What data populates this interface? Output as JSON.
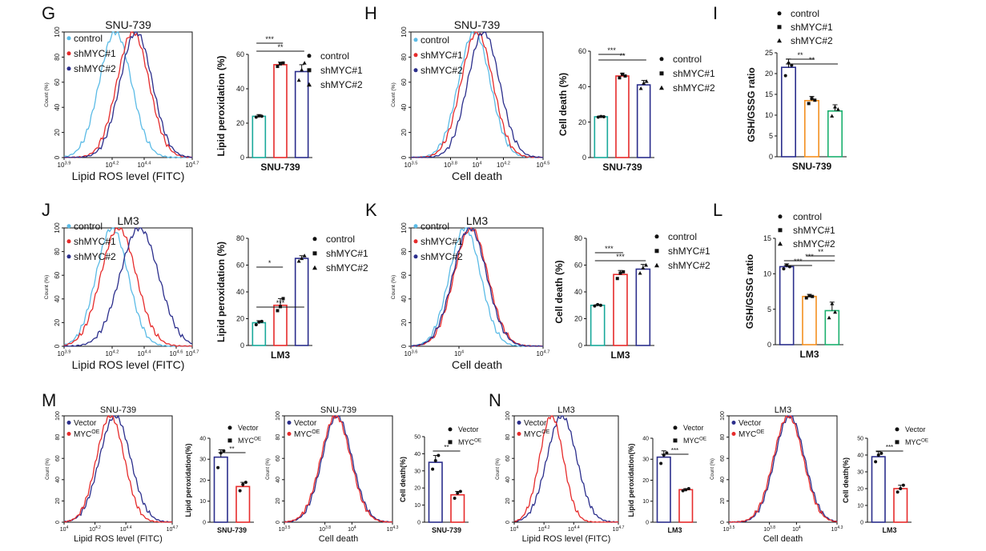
{
  "colors": {
    "control": "#5bbbe6",
    "shMYC1": "#e62b2b",
    "shMYC2": "#2b2e8c",
    "bar_control": "#19a99a",
    "bar_orange": "#f39020",
    "bar_green": "#1bb06e",
    "vector": "#2b2e8c",
    "mycoe": "#e62b2b",
    "axis": "#111111"
  },
  "panels": {
    "G": {
      "letter": "G",
      "title": "SNU-739",
      "xlabel": "Lipid ROS level (FITC)",
      "ylabel": "Count (%)"
    },
    "G2": {
      "ylabel": "Lipid peroxidation (%)",
      "xlabel": "SNU-739"
    },
    "H": {
      "letter": "H",
      "title": "SNU-739",
      "xlabel": "Cell death",
      "ylabel": "Count (%)"
    },
    "H2": {
      "ylabel": "Cell death (%)",
      "xlabel": "SNU-739"
    },
    "I": {
      "letter": "I",
      "ylabel": "GSH/GSSG ratio",
      "xlabel": "SNU-739"
    },
    "J": {
      "letter": "J",
      "title": "LM3",
      "xlabel": "Lipid ROS level (FITC)",
      "ylabel": "Count (%)"
    },
    "J2": {
      "ylabel": "Lipid peroxidation (%)",
      "xlabel": "LM3"
    },
    "K": {
      "letter": "K",
      "title": "LM3",
      "xlabel": "Cell death",
      "ylabel": "Count (%)"
    },
    "K2": {
      "ylabel": "Cell death (%)",
      "xlabel": "LM3"
    },
    "L": {
      "letter": "L",
      "ylabel": "GSH/GSSG ratio",
      "xlabel": "LM3"
    },
    "M": {
      "letter": "M",
      "title": "SNU-739",
      "xlabel": "Lipid ROS level (FITC)",
      "ylabel": "Count (%)"
    },
    "M2": {
      "ylabel": "Lipid peroxidation(%)",
      "xlabel": "SNU-739"
    },
    "M3": {
      "title": "SNU-739",
      "xlabel": "Cell death",
      "ylabel": "Count (%)"
    },
    "M4": {
      "ylabel": "Cell death(%)",
      "xlabel": "SNU-739"
    },
    "N": {
      "letter": "N",
      "title": "LM3",
      "xlabel": "Lipid ROS level (FITC)",
      "ylabel": "Count (%)"
    },
    "N2": {
      "ylabel": "Lipid peroxidation(%)",
      "xlabel": "LM3"
    },
    "N3": {
      "title": "LM3",
      "xlabel": "Cell death",
      "ylabel": "Count (%)"
    },
    "N4": {
      "ylabel": "Cell death(%)",
      "xlabel": "LM3"
    }
  },
  "legends": {
    "hist3": [
      "control",
      "shMYC#1",
      "shMYC#2"
    ],
    "bar3": [
      "control",
      "shMYC#1",
      "shMYC#2"
    ],
    "vec": [
      "Vector",
      "MYC",
      "OE"
    ]
  },
  "chart_data": [
    {
      "id": "G-hist",
      "type": "line",
      "title": "SNU-739",
      "xlabel": "Lipid ROS level (FITC)",
      "ylabel": "Count (%)",
      "xscale": "log",
      "x_ticks": [
        "10^3.9",
        "10^4.2",
        "10^4.4",
        "10^4.7"
      ],
      "y_ticks": [
        "0",
        "20",
        "40",
        "60",
        "80",
        "100"
      ],
      "ylim": [
        0,
        100
      ],
      "series": [
        {
          "name": "control",
          "peak_log10": 4.22,
          "sd_log10": 0.1
        },
        {
          "name": "shMYC#1",
          "peak_log10": 4.33,
          "sd_log10": 0.1
        },
        {
          "name": "shMYC#2",
          "peak_log10": 4.35,
          "sd_log10": 0.1
        }
      ]
    },
    {
      "id": "G-bar",
      "type": "bar",
      "xlabel": "SNU-739",
      "ylabel": "Lipid peroxidation (%)",
      "ylim": [
        0,
        60
      ],
      "y_ticks": [
        "0",
        "20",
        "40",
        "60"
      ],
      "categories": [
        "control",
        "shMYC#1",
        "shMYC#2"
      ],
      "values": [
        24,
        54,
        50
      ],
      "errors": [
        1,
        1.5,
        4
      ],
      "points": [
        [
          23.5,
          24.2,
          24.0
        ],
        [
          53,
          54.5,
          55
        ],
        [
          45,
          51,
          55
        ]
      ],
      "significance": [
        {
          "from": 0,
          "to": 1,
          "label": "***"
        },
        {
          "from": 0,
          "to": 2,
          "label": "**"
        }
      ]
    },
    {
      "id": "H-hist",
      "type": "line",
      "title": "SNU-739",
      "xlabel": "Cell death",
      "ylabel": "Count (%)",
      "xscale": "log",
      "x_ticks": [
        "10^3.5",
        "10^3.8",
        "10^4",
        "10^4.2",
        "10^4.5"
      ],
      "y_ticks": [
        "0",
        "20",
        "40",
        "60",
        "80",
        "100"
      ],
      "ylim": [
        0,
        100
      ],
      "series": [
        {
          "name": "control",
          "peak_log10": 3.98,
          "sd_log10": 0.12
        },
        {
          "name": "shMYC#1",
          "peak_log10": 4.0,
          "sd_log10": 0.12
        },
        {
          "name": "shMYC#2",
          "peak_log10": 4.05,
          "sd_log10": 0.12
        }
      ]
    },
    {
      "id": "H-bar",
      "type": "bar",
      "xlabel": "SNU-739",
      "ylabel": "Cell death (%)",
      "ylim": [
        0,
        60
      ],
      "y_ticks": [
        "0",
        "20",
        "40",
        "60"
      ],
      "categories": [
        "control",
        "shMYC#1",
        "shMYC#2"
      ],
      "values": [
        23,
        46,
        41
      ],
      "errors": [
        0.5,
        1.5,
        2.5
      ],
      "points": [
        [
          22.8,
          23.2,
          23.0
        ],
        [
          45,
          47,
          46
        ],
        [
          39,
          42,
          43
        ]
      ],
      "significance": [
        {
          "from": 0,
          "to": 1,
          "label": "***"
        },
        {
          "from": 0,
          "to": 2,
          "label": "**"
        }
      ]
    },
    {
      "id": "I-bar",
      "type": "bar",
      "xlabel": "SNU-739",
      "ylabel": "GSH/GSSG ratio",
      "ylim": [
        0,
        25
      ],
      "y_ticks": [
        "0",
        "5",
        "10",
        "15",
        "20",
        "25"
      ],
      "categories": [
        "control",
        "shMYC#1",
        "shMYC#2"
      ],
      "values": [
        21.5,
        13.5,
        11
      ],
      "errors": [
        2,
        1,
        1.5
      ],
      "points": [
        [
          19.5,
          22.5,
          22
        ],
        [
          12.8,
          14,
          13.6
        ],
        [
          9.8,
          12,
          11.4
        ]
      ],
      "significance": [
        {
          "from": 0,
          "to": 1,
          "label": "**"
        },
        {
          "from": 0,
          "to": 2,
          "label": "**"
        }
      ]
    },
    {
      "id": "J-hist",
      "type": "line",
      "title": "LM3",
      "xlabel": "Lipid ROS level (FITC)",
      "ylabel": "Count (%)",
      "xscale": "log",
      "x_ticks": [
        "10^3.9",
        "10^4.2",
        "10^4.4",
        "10^4.6",
        "10^4.7"
      ],
      "y_ticks": [
        "0",
        "20",
        "40",
        "60",
        "80",
        "100"
      ],
      "ylim": [
        0,
        100
      ],
      "series": [
        {
          "name": "control",
          "peak_log10": 4.2,
          "sd_log10": 0.1
        },
        {
          "name": "shMYC#1",
          "peak_log10": 4.24,
          "sd_log10": 0.11
        },
        {
          "name": "shMYC#2",
          "peak_log10": 4.37,
          "sd_log10": 0.12
        }
      ]
    },
    {
      "id": "J-bar",
      "type": "bar",
      "xlabel": "LM3",
      "ylabel": "Lipid peroxidation (%)",
      "ylim": [
        0,
        80
      ],
      "y_ticks": [
        "0",
        "20",
        "40",
        "60",
        "80"
      ],
      "categories": [
        "control",
        "shMYC#1",
        "shMYC#2"
      ],
      "values": [
        17,
        30,
        65
      ],
      "errors": [
        1.5,
        5,
        2
      ],
      "points": [
        [
          15.5,
          17.5,
          18
        ],
        [
          26,
          29,
          35
        ],
        [
          63,
          65,
          67
        ]
      ],
      "significance": [
        {
          "from": 0,
          "to": 1,
          "label": "*"
        },
        {
          "from": 0,
          "to": 2,
          "label": "***"
        }
      ]
    },
    {
      "id": "K-hist",
      "type": "line",
      "title": "LM3",
      "xlabel": "Cell death",
      "ylabel": "Count (%)",
      "xscale": "log",
      "x_ticks": [
        "10^3.6",
        "10^4",
        "10^4.7"
      ],
      "y_ticks": [
        "0",
        "20",
        "40",
        "60",
        "80",
        "100"
      ],
      "ylim": [
        0,
        100
      ],
      "series": [
        {
          "name": "control",
          "peak_log10": 4.05,
          "sd_log10": 0.13
        },
        {
          "name": "shMYC#1",
          "peak_log10": 4.1,
          "sd_log10": 0.14
        },
        {
          "name": "shMYC#2",
          "peak_log10": 4.09,
          "sd_log10": 0.14
        }
      ]
    },
    {
      "id": "K-bar",
      "type": "bar",
      "xlabel": "LM3",
      "ylabel": "Cell death (%)",
      "ylim": [
        0,
        80
      ],
      "y_ticks": [
        "0",
        "20",
        "40",
        "60",
        "80"
      ],
      "categories": [
        "control",
        "shMYC#1",
        "shMYC#2"
      ],
      "values": [
        30,
        53,
        57
      ],
      "errors": [
        0.5,
        3,
        3.5
      ],
      "points": [
        [
          29.5,
          30.5,
          30
        ],
        [
          50,
          54,
          55
        ],
        [
          54,
          58,
          60
        ]
      ],
      "significance": [
        {
          "from": 0,
          "to": 1,
          "label": "***"
        },
        {
          "from": 0,
          "to": 2,
          "label": "***"
        }
      ]
    },
    {
      "id": "L-bar",
      "type": "bar",
      "xlabel": "LM3",
      "ylabel": "GSH/GSSG ratio",
      "ylim": [
        0,
        15
      ],
      "y_ticks": [
        "0",
        "5",
        "10",
        "15"
      ],
      "categories": [
        "control",
        "shMYC#1",
        "shMYC#2"
      ],
      "values": [
        11,
        6.8,
        4.8
      ],
      "errors": [
        0.4,
        0.3,
        1.2
      ],
      "points": [
        [
          10.7,
          11.2,
          11
        ],
        [
          6.6,
          6.9,
          6.8
        ],
        [
          3.8,
          5.8,
          4.6
        ]
      ],
      "significance": [
        {
          "from": 0,
          "to": 1,
          "label": "***"
        },
        {
          "from": 0,
          "to": 2,
          "label": "***"
        },
        {
          "from": 1,
          "to": 2,
          "label": "**"
        }
      ]
    },
    {
      "id": "M-hist1",
      "type": "line",
      "title": "SNU-739",
      "xlabel": "Lipid ROS level (FITC)",
      "ylabel": "Count (%)",
      "xscale": "log",
      "x_ticks": [
        "10^4",
        "10^4.2",
        "10^4.4",
        "10^4.7"
      ],
      "y_ticks": [
        "0",
        "20",
        "40",
        "60",
        "80",
        "100"
      ],
      "ylim": [
        0,
        100
      ],
      "series": [
        {
          "name": "Vector",
          "peak_log10": 4.33,
          "sd_log10": 0.1
        },
        {
          "name": "MYCOE",
          "peak_log10": 4.3,
          "sd_log10": 0.09
        }
      ]
    },
    {
      "id": "M-bar1",
      "type": "bar",
      "xlabel": "SNU-739",
      "ylabel": "Lipid peroxidation(%)",
      "ylim": [
        0,
        40
      ],
      "y_ticks": [
        "0",
        "10",
        "20",
        "30",
        "40"
      ],
      "categories": [
        "Vector",
        "MYCOE"
      ],
      "values": [
        31,
        17
      ],
      "errors": [
        3.5,
        2
      ],
      "points": [
        [
          26,
          33,
          34
        ],
        [
          15,
          18,
          19
        ]
      ],
      "significance": [
        {
          "from": 0,
          "to": 1,
          "label": "**"
        }
      ]
    },
    {
      "id": "M-hist2",
      "type": "line",
      "title": "SNU-739",
      "xlabel": "Cell death",
      "ylabel": "Count (%)",
      "xscale": "log",
      "x_ticks": [
        "10^3.5",
        "10^3.8",
        "10^4",
        "10^4.3"
      ],
      "y_ticks": [
        "0",
        "20",
        "40",
        "60",
        "80",
        "100"
      ],
      "ylim": [
        0,
        100
      ],
      "series": [
        {
          "name": "Vector",
          "peak_log10": 3.89,
          "sd_log10": 0.11
        },
        {
          "name": "MYCOE",
          "peak_log10": 3.88,
          "sd_log10": 0.11
        }
      ]
    },
    {
      "id": "M-bar2",
      "type": "bar",
      "xlabel": "SNU-739",
      "ylabel": "Cell death(%)",
      "ylim": [
        0,
        50
      ],
      "y_ticks": [
        "0",
        "10",
        "20",
        "30",
        "40",
        "50"
      ],
      "categories": [
        "Vector",
        "MYCOE"
      ],
      "values": [
        35,
        16
      ],
      "errors": [
        4,
        2
      ],
      "points": [
        [
          31,
          36,
          39
        ],
        [
          14,
          17,
          18
        ]
      ],
      "significance": [
        {
          "from": 0,
          "to": 1,
          "label": "**"
        }
      ]
    },
    {
      "id": "N-hist1",
      "type": "line",
      "title": "LM3",
      "xlabel": "Lipid ROS level (FITC)",
      "ylabel": "Count (%)",
      "xscale": "log",
      "x_ticks": [
        "10^4",
        "10^4.2",
        "10^4.4",
        "10^4.7"
      ],
      "y_ticks": [
        "0",
        "20",
        "40",
        "60",
        "80",
        "100"
      ],
      "ylim": [
        0,
        100
      ],
      "series": [
        {
          "name": "Vector",
          "peak_log10": 4.32,
          "sd_log10": 0.1
        },
        {
          "name": "MYCOE",
          "peak_log10": 4.25,
          "sd_log10": 0.08
        }
      ]
    },
    {
      "id": "N-bar1",
      "type": "bar",
      "xlabel": "LM3",
      "ylabel": "Lipid peroxidation(%)",
      "ylim": [
        0,
        40
      ],
      "y_ticks": [
        "0",
        "10",
        "20",
        "30",
        "40"
      ],
      "categories": [
        "Vector",
        "MYCOE"
      ],
      "values": [
        31,
        15.5
      ],
      "errors": [
        3,
        0.5
      ],
      "points": [
        [
          28,
          32,
          33
        ],
        [
          15,
          15.5,
          16
        ]
      ],
      "significance": [
        {
          "from": 0,
          "to": 1,
          "label": "***"
        }
      ]
    },
    {
      "id": "N-hist2",
      "type": "line",
      "title": "LM3",
      "xlabel": "Cell death",
      "ylabel": "Count (%)",
      "xscale": "log",
      "x_ticks": [
        "10^3.5",
        "10^3.8",
        "10^4",
        "10^4.3"
      ],
      "y_ticks": [
        "0",
        "20",
        "40",
        "60",
        "80",
        "100"
      ],
      "ylim": [
        0,
        100
      ],
      "series": [
        {
          "name": "Vector",
          "peak_log10": 3.95,
          "sd_log10": 0.11
        },
        {
          "name": "MYCOE",
          "peak_log10": 3.94,
          "sd_log10": 0.11
        }
      ]
    },
    {
      "id": "N-bar2",
      "type": "bar",
      "xlabel": "LM3",
      "ylabel": "Cell death(%)",
      "ylim": [
        0,
        50
      ],
      "y_ticks": [
        "0",
        "10",
        "20",
        "30",
        "40",
        "50"
      ],
      "categories": [
        "Vector",
        "MYCOE"
      ],
      "values": [
        39,
        20
      ],
      "errors": [
        3,
        2
      ],
      "points": [
        [
          36,
          40,
          41
        ],
        [
          18,
          20,
          22
        ]
      ],
      "significance": [
        {
          "from": 0,
          "to": 1,
          "label": "***"
        }
      ]
    }
  ]
}
